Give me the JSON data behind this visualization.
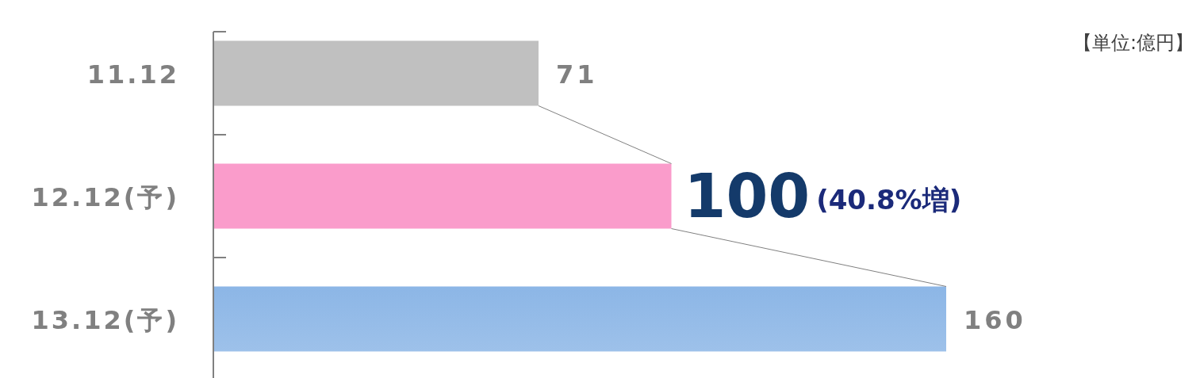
{
  "chart_data": {
    "type": "bar",
    "orientation": "horizontal",
    "categories": [
      "11.12",
      "12.12(予)",
      "13.12(予)"
    ],
    "values": [
      71,
      100,
      160
    ],
    "colors": [
      "#c0c0c0",
      "#fa9ccb",
      "#8cb6e6"
    ],
    "data_labels": true,
    "annotations": [
      "(40.8%増)",
      "【単位:億円】"
    ]
  }
}
